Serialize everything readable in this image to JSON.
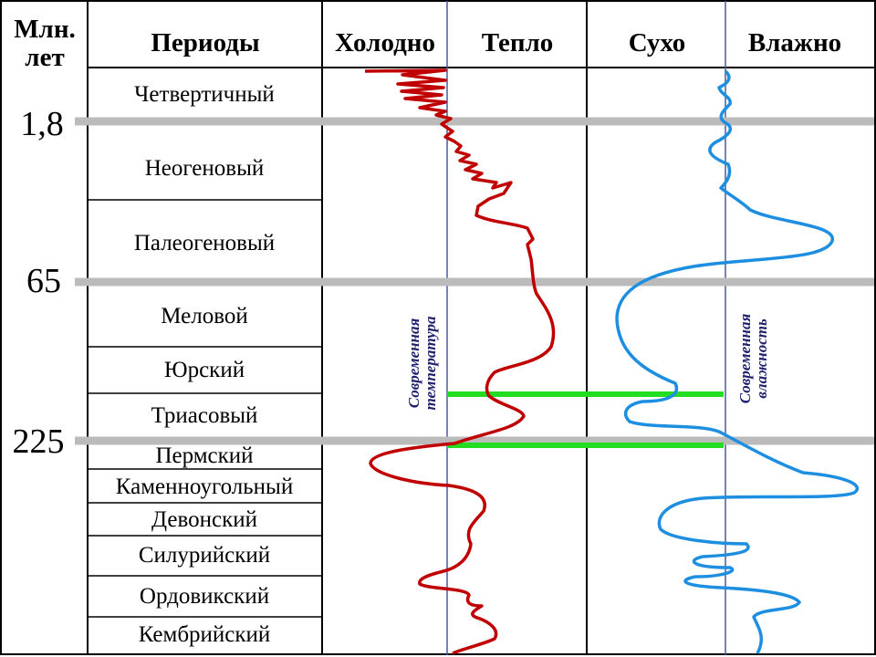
{
  "headers": {
    "age": [
      "Млн.",
      "лет"
    ],
    "periods": "Периоды",
    "cold": "Холодно",
    "warm": "Тепло",
    "dry": "Сухо",
    "wet": "Влажно"
  },
  "age_marks": [
    "1,8",
    "65",
    "225"
  ],
  "periods": [
    "Четвертичный",
    "Неогеновый",
    "Палеогеновый",
    "Меловой",
    "Юрский",
    "Триасовый",
    "Пермский",
    "Каменноугольный",
    "Девонский",
    "Силурийский",
    "Ордовикский",
    "Кембрийский"
  ],
  "labels": {
    "modern_temperature": [
      "Современная",
      "температура"
    ],
    "modern_humidity": [
      "Современная",
      "влажность"
    ]
  },
  "colors": {
    "temperature_curve": "#c00000",
    "humidity_curve": "#1e8fe0",
    "boundary_line": "#bbbbbb",
    "highlight_line": "#22dd22",
    "reference_line": "#4a5a9a"
  }
}
